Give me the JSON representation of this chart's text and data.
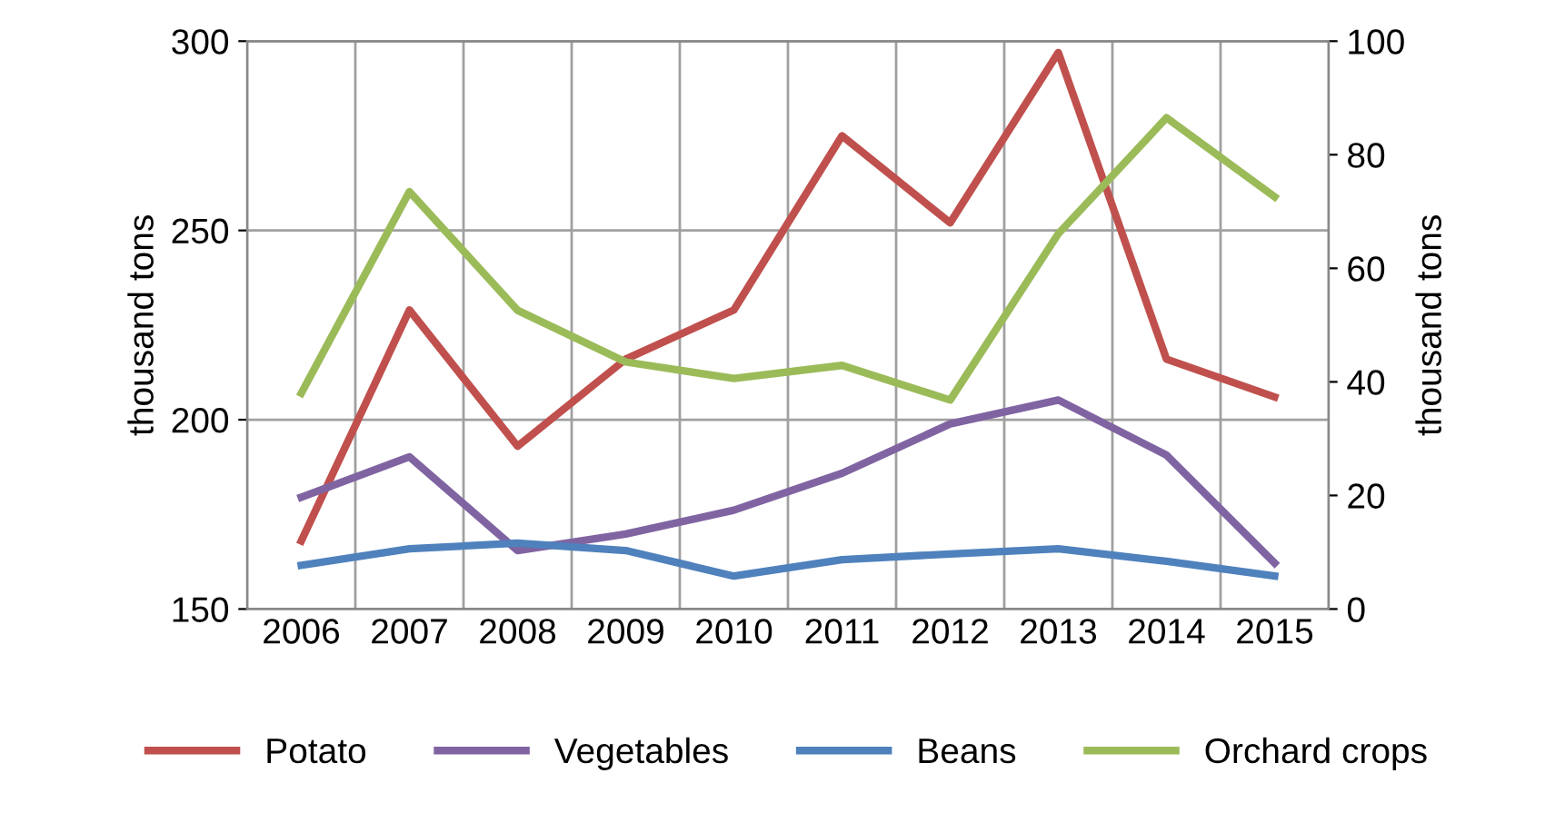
{
  "chart_data": {
    "type": "line",
    "categories": [
      "2006",
      "2007",
      "2008",
      "2009",
      "2010",
      "2011",
      "2012",
      "2013",
      "2014",
      "2015"
    ],
    "ylabel": "thousand tons",
    "y2label": "thousand tons",
    "ylim": [
      150,
      300
    ],
    "yticks": [
      150,
      200,
      250,
      300
    ],
    "y2lim": [
      0,
      100
    ],
    "y2ticks": [
      0,
      20,
      40,
      60,
      80,
      100
    ],
    "grid": true,
    "legend": "bottom",
    "line_style": "solid",
    "series": [
      {
        "name": "Potato",
        "color": "#c0504d",
        "values": [
          168,
          229,
          193,
          216,
          229,
          275,
          252,
          297,
          216,
          206
        ]
      },
      {
        "name": "Vegetables",
        "color": "#8064a2",
        "axis": "y2",
        "values": [
          19.7,
          26.8,
          10.3,
          13.2,
          17.4,
          23.9,
          32.6,
          36.8,
          27.1,
          8.1
        ]
      },
      {
        "name": "Beans",
        "color": "#4f81bd",
        "axis": "y2",
        "values": [
          7.7,
          10.6,
          11.6,
          10.3,
          5.8,
          8.7,
          9.7,
          10.6,
          8.4,
          5.8
        ]
      },
      {
        "name": "Orchard crops",
        "color": "#9bbb59",
        "axis": "y2",
        "values": [
          38,
          73.5,
          52.6,
          43.5,
          40.6,
          42.9,
          36.8,
          66.1,
          86.5,
          72.6
        ]
      }
    ]
  }
}
